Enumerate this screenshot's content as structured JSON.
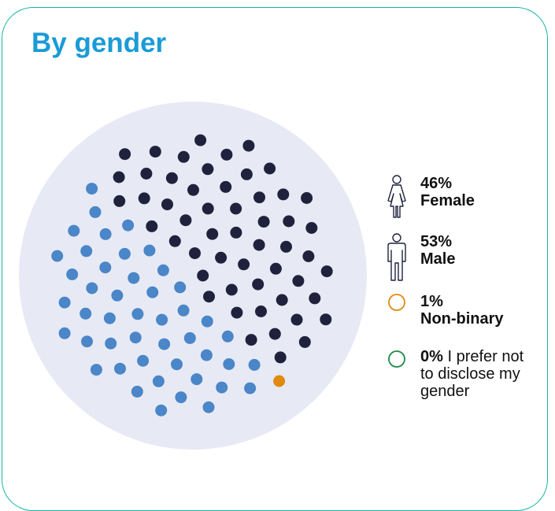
{
  "title": "By gender",
  "colors": {
    "female": "#4a86c8",
    "male": "#20223d",
    "nonbinary": "#e08a10",
    "undisclosed": "#1e8a4a",
    "circle_bg": "#e7eaf4",
    "title": "#1a9bd6",
    "border": "#16b3a6"
  },
  "legend": [
    {
      "icon": "female-person-icon",
      "value": "46%",
      "label": "Female"
    },
    {
      "icon": "male-person-icon",
      "value": "53%",
      "label": "Male"
    },
    {
      "icon": "ring-orange-icon",
      "value": "1%",
      "label": "Non-binary"
    },
    {
      "icon": "ring-green-icon",
      "value": "0%",
      "label": "I prefer not to disclose my gender"
    }
  ],
  "chart_data": {
    "type": "dot-matrix",
    "title": "By gender",
    "total_dots": 100,
    "categories": [
      "Female",
      "Male",
      "Non-binary",
      "I prefer not to disclose my gender"
    ],
    "values": [
      46,
      53,
      1,
      0
    ],
    "unit": "%"
  }
}
